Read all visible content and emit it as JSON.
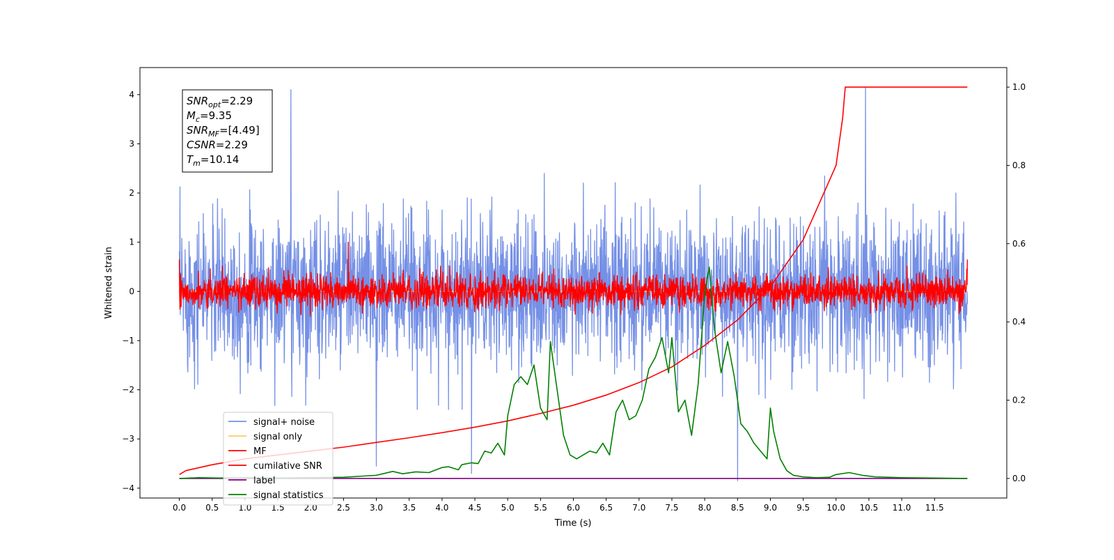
{
  "chart_data": {
    "type": "line",
    "xlabel": "Time (s)",
    "ylabel": "Whitened strain",
    "xlim": [
      -0.6,
      12.6
    ],
    "ylim": [
      -4.2,
      4.55
    ],
    "y2lim": [
      -0.05,
      1.05
    ],
    "x_ticks": [
      "0.0",
      "0.5",
      "1.0",
      "1.5",
      "2.0",
      "2.5",
      "3.0",
      "3.5",
      "4.0",
      "4.5",
      "5.0",
      "5.5",
      "6.0",
      "6.5",
      "7.0",
      "7.5",
      "8.0",
      "8.5",
      "9.0",
      "9.5",
      "10.0",
      "10.5",
      "11.0",
      "11.5"
    ],
    "y_ticks": [
      "4",
      "3",
      "2",
      "1",
      "0",
      "−1",
      "−2",
      "−3",
      "−4"
    ],
    "y2_ticks": [
      "1.0",
      "0.8",
      "0.6",
      "0.4",
      "0.2",
      "0.0"
    ],
    "grid": false,
    "legend_placement": "lower left",
    "info_box": {
      "snr_opt": {
        "sym": "SNR",
        "sub": "opt",
        "val": "=2.29"
      },
      "mc": {
        "sym": "M",
        "sub": "c",
        "val": "=9.35"
      },
      "snr_mf": {
        "sym": "SNR",
        "sub": "MF",
        "val": "=[4.49]"
      },
      "csnr": {
        "sym": "CSNR",
        "sub": "",
        "val": "=2.29"
      },
      "tm": {
        "sym": "T",
        "sub": "m",
        "val": "=10.14"
      }
    },
    "series": [
      {
        "name": "signal+ noise",
        "color": "#7590e6",
        "style": "noise",
        "axis": "left",
        "x_range": [
          0.0,
          12.0
        ],
        "std": 0.75,
        "spikes": [
          [
            1.7,
            4.1
          ],
          [
            10.45,
            4.15
          ],
          [
            8.5,
            -3.85
          ],
          [
            4.45,
            -3.7
          ],
          [
            3.0,
            -3.55
          ]
        ]
      },
      {
        "name": "signal only",
        "color": "#ffc966",
        "style": "flat",
        "axis": "left",
        "x": [
          0.0,
          12.0
        ],
        "y": [
          0.0,
          0.0
        ]
      },
      {
        "name": "MF",
        "color": "#ff0000",
        "style": "noise",
        "axis": "left",
        "x_range": [
          0.0,
          12.0
        ],
        "std": 0.16,
        "spikes": [
          [
            0.0,
            0.65
          ],
          [
            2.57,
            1.0
          ],
          [
            12.0,
            0.65
          ]
        ]
      },
      {
        "name": "cumilative SNR",
        "color": "#ff0000",
        "style": "curve",
        "axis": "right",
        "x": [
          0.0,
          0.1,
          0.5,
          1.0,
          1.5,
          2.0,
          2.5,
          3.0,
          3.5,
          4.0,
          4.5,
          5.0,
          5.5,
          6.0,
          6.5,
          7.0,
          7.5,
          8.0,
          8.5,
          9.0,
          9.5,
          10.0,
          10.1,
          10.14,
          12.0
        ],
        "y": [
          0.01,
          0.02,
          0.035,
          0.05,
          0.06,
          0.07,
          0.08,
          0.092,
          0.104,
          0.117,
          0.131,
          0.147,
          0.166,
          0.187,
          0.213,
          0.245,
          0.285,
          0.34,
          0.405,
          0.49,
          0.61,
          0.8,
          0.92,
          1.0,
          1.0
        ]
      },
      {
        "name": "label",
        "color": "#800080",
        "style": "flat",
        "axis": "right",
        "x": [
          0.0,
          12.0
        ],
        "y": [
          0.0,
          0.0
        ]
      },
      {
        "name": "signal statistics",
        "color": "#008000",
        "style": "curve",
        "axis": "right",
        "x": [
          0.0,
          0.3,
          0.6,
          1.0,
          1.5,
          2.0,
          2.5,
          2.8,
          3.0,
          3.1,
          3.25,
          3.4,
          3.6,
          3.8,
          4.0,
          4.1,
          4.25,
          4.3,
          4.45,
          4.55,
          4.65,
          4.75,
          4.85,
          4.95,
          5.0,
          5.1,
          5.2,
          5.3,
          5.4,
          5.5,
          5.6,
          5.65,
          5.75,
          5.85,
          5.95,
          6.05,
          6.15,
          6.25,
          6.35,
          6.45,
          6.55,
          6.65,
          6.75,
          6.85,
          6.95,
          7.05,
          7.15,
          7.25,
          7.35,
          7.45,
          7.5,
          7.6,
          7.7,
          7.8,
          7.9,
          8.0,
          8.07,
          8.15,
          8.25,
          8.35,
          8.45,
          8.55,
          8.65,
          8.75,
          8.85,
          8.95,
          9.0,
          9.05,
          9.15,
          9.25,
          9.35,
          9.5,
          9.7,
          9.9,
          10.0,
          10.2,
          10.4,
          10.6,
          10.8,
          11.0,
          11.5,
          12.0
        ],
        "y": [
          0.0,
          0.002,
          0.001,
          0.002,
          0.001,
          0.002,
          0.003,
          0.006,
          0.008,
          0.012,
          0.018,
          0.012,
          0.017,
          0.015,
          0.028,
          0.03,
          0.022,
          0.035,
          0.04,
          0.038,
          0.07,
          0.065,
          0.09,
          0.06,
          0.16,
          0.24,
          0.26,
          0.24,
          0.29,
          0.18,
          0.15,
          0.35,
          0.23,
          0.11,
          0.06,
          0.05,
          0.06,
          0.07,
          0.065,
          0.09,
          0.06,
          0.17,
          0.2,
          0.15,
          0.16,
          0.2,
          0.28,
          0.31,
          0.36,
          0.27,
          0.36,
          0.17,
          0.2,
          0.11,
          0.24,
          0.47,
          0.54,
          0.38,
          0.27,
          0.35,
          0.26,
          0.14,
          0.12,
          0.09,
          0.07,
          0.05,
          0.18,
          0.12,
          0.05,
          0.02,
          0.008,
          0.004,
          0.002,
          0.003,
          0.01,
          0.015,
          0.008,
          0.004,
          0.003,
          0.002,
          0.001,
          0.0
        ]
      }
    ]
  }
}
